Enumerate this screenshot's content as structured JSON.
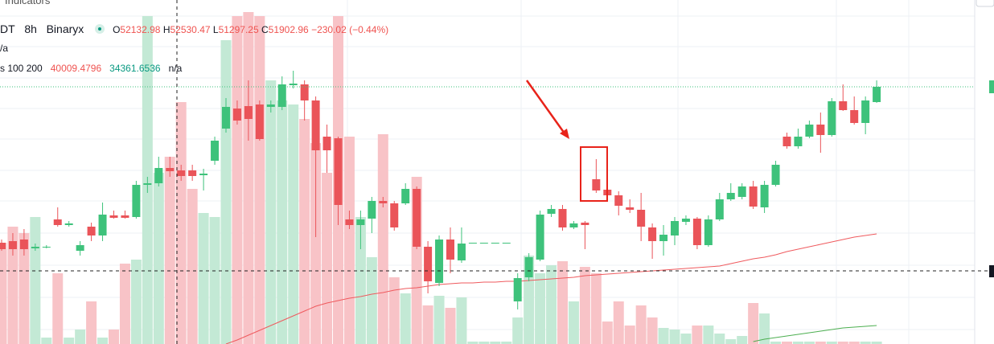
{
  "toolbar": {
    "title": "Indicators"
  },
  "legend": {
    "symbol": "DT",
    "interval": "8h",
    "exchange": "Binaryx",
    "open_label": "O",
    "open": "52132.98",
    "high_label": "H",
    "high": "52530.47",
    "low_label": "L",
    "low": "51297.25",
    "close_label": "C",
    "close": "51902.96",
    "change": "−230.02 (−0.44%)",
    "volume_row": "/a",
    "ma_label": "s 100 200",
    "ma_fast": "40009.4796",
    "ma_slow": "34361.6536",
    "ma_extra": "n/a"
  },
  "chart_data": {
    "type": "candlestick",
    "categories": [
      null,
      null,
      null,
      null,
      null,
      null,
      null,
      null,
      null,
      null,
      null,
      null,
      null,
      null,
      null,
      null,
      null,
      null,
      null,
      null,
      null,
      null,
      null,
      null,
      null,
      null,
      null,
      null,
      null,
      null,
      null,
      null,
      null,
      null,
      null,
      null,
      null,
      null,
      null,
      null,
      null,
      null,
      null,
      null,
      null,
      null,
      null,
      null,
      null,
      null,
      null,
      null,
      null,
      null,
      null,
      null,
      null,
      null,
      null,
      null,
      null,
      null,
      null,
      null,
      null,
      null,
      null,
      null,
      null,
      null,
      null,
      null,
      null,
      null,
      null,
      null,
      null,
      null,
      null
    ],
    "open": [
      44900,
      45000,
      45100,
      44550,
      44650,
      46350,
      46000,
      44400,
      45900,
      45350,
      46600,
      46600,
      46500,
      48500,
      48600,
      49550,
      49400,
      49400,
      49100,
      50000,
      52000,
      53250,
      53400,
      53500,
      53350,
      53350,
      54700,
      54750,
      53750,
      51500,
      51400,
      46350,
      46000,
      46400,
      47500,
      47350,
      47350,
      48250,
      44650,
      42400,
      45100,
      43800,
      44900,
      44900,
      44900,
      44900,
      41250,
      42750,
      43850,
      46700,
      47000,
      45850,
      46150,
      48850,
      48200,
      47850,
      47100,
      46950,
      45850,
      45000,
      45350,
      46200,
      46400,
      44750,
      46350,
      47600,
      47750,
      48400,
      47100,
      48500,
      51500,
      50900,
      51500,
      52250,
      51600,
      53700,
      53150,
      52350,
      53650
    ],
    "high": [
      45100,
      45500,
      45750,
      44850,
      44750,
      47100,
      46250,
      45000,
      46150,
      47400,
      46900,
      46900,
      48750,
      49000,
      50250,
      50250,
      49750,
      49750,
      49500,
      51500,
      53900,
      53750,
      55000,
      53750,
      53750,
      55250,
      55600,
      55000,
      54000,
      52250,
      51500,
      46900,
      46900,
      47750,
      47750,
      47500,
      48600,
      48400,
      45000,
      45350,
      45850,
      45850,
      44900,
      44900,
      44900,
      44900,
      43000,
      44250,
      46900,
      47250,
      47250,
      46250,
      46250,
      50100,
      49100,
      48100,
      47600,
      48000,
      46100,
      46000,
      46500,
      46600,
      46500,
      46600,
      48000,
      48600,
      48600,
      48750,
      48750,
      50000,
      51750,
      52000,
      52500,
      53000,
      53900,
      54750,
      54000,
      54000,
      55000
    ],
    "low": [
      44400,
      44100,
      44100,
      44400,
      44550,
      45900,
      45900,
      44100,
      45000,
      45000,
      46400,
      46400,
      46400,
      48000,
      48400,
      49000,
      48750,
      48750,
      48150,
      49750,
      51750,
      52250,
      51250,
      51250,
      53000,
      53150,
      54500,
      52500,
      45250,
      49250,
      46000,
      45750,
      44500,
      45500,
      47100,
      45650,
      47250,
      44500,
      41750,
      42200,
      43000,
      43650,
      44900,
      44900,
      44900,
      44900,
      40750,
      42500,
      43750,
      46500,
      45650,
      45750,
      44500,
      48000,
      47750,
      46600,
      46750,
      45000,
      43900,
      44100,
      44750,
      46000,
      44500,
      44650,
      46250,
      47500,
      47600,
      47000,
      46750,
      48400,
      50750,
      50750,
      51400,
      50500,
      51500,
      53100,
      52250,
      51650,
      53600
    ],
    "close": [
      44500,
      44500,
      44500,
      44650,
      44650,
      46000,
      46100,
      44750,
      45350,
      46650,
      46450,
      46450,
      48500,
      48600,
      49550,
      49350,
      49050,
      49050,
      49200,
      51250,
      53350,
      52500,
      52600,
      51350,
      53500,
      54750,
      54800,
      53750,
      50650,
      50650,
      47250,
      46000,
      46350,
      47500,
      47350,
      45850,
      48250,
      44650,
      42500,
      45100,
      43850,
      44850,
      44900,
      44900,
      44900,
      44900,
      42700,
      44000,
      46650,
      47000,
      45850,
      46100,
      46000,
      48150,
      47850,
      47200,
      46950,
      45900,
      45000,
      45400,
      46250,
      46400,
      44750,
      46350,
      47600,
      48000,
      48400,
      47150,
      48500,
      49750,
      50900,
      51500,
      52250,
      51600,
      53700,
      53150,
      52350,
      53750,
      54600
    ],
    "volume": [
      126,
      146,
      138,
      158,
      8,
      88,
      8,
      18,
      53,
      8,
      18,
      100,
      105,
      408,
      213,
      233,
      301,
      193,
      163,
      158,
      378,
      408,
      413,
      408,
      328,
      303,
      298,
      280,
      250,
      213,
      408,
      258,
      158,
      108,
      261,
      83,
      63,
      208,
      48,
      60,
      45,
      58,
      3,
      3,
      3,
      3,
      33,
      110,
      88,
      98,
      103,
      53,
      96,
      88,
      28,
      53,
      23,
      48,
      33,
      20,
      18,
      13,
      23,
      23,
      13,
      6,
      10,
      51,
      38,
      3,
      3,
      3,
      3,
      3,
      3,
      3,
      3,
      3,
      3
    ],
    "ma_fast": [
      null,
      null,
      null,
      null,
      null,
      null,
      null,
      null,
      null,
      null,
      null,
      null,
      null,
      null,
      null,
      null,
      null,
      null,
      null,
      null,
      38600,
      38850,
      39150,
      39450,
      39750,
      40050,
      40350,
      40650,
      40950,
      41150,
      41300,
      41450,
      41550,
      41700,
      41800,
      41950,
      42050,
      42100,
      42200,
      42300,
      42350,
      42400,
      42400,
      42450,
      42450,
      42500,
      42500,
      42550,
      42600,
      42650,
      42700,
      42750,
      42850,
      42900,
      42950,
      43000,
      43050,
      43100,
      43150,
      43200,
      43250,
      43300,
      43350,
      43400,
      43450,
      43600,
      43750,
      43900,
      44000,
      44150,
      44350,
      44500,
      44650,
      44800,
      44950,
      45100,
      45250,
      45350,
      45450
    ],
    "ma_slow": [
      null,
      null,
      null,
      null,
      null,
      null,
      null,
      null,
      null,
      null,
      null,
      null,
      null,
      null,
      null,
      null,
      null,
      null,
      null,
      null,
      null,
      null,
      null,
      null,
      null,
      null,
      null,
      null,
      null,
      null,
      null,
      null,
      null,
      null,
      null,
      null,
      null,
      null,
      null,
      null,
      null,
      null,
      null,
      null,
      null,
      null,
      null,
      null,
      null,
      null,
      null,
      null,
      null,
      null,
      null,
      null,
      null,
      null,
      null,
      null,
      null,
      null,
      null,
      null,
      null,
      null,
      null,
      38750,
      38900,
      39000,
      39100,
      39200,
      39300,
      39400,
      39500,
      39600,
      39650,
      39700,
      39750
    ],
    "ylim": [
      38600,
      60000
    ],
    "vlim": [
      0,
      428
    ],
    "up_color": "#3ec27b",
    "down_color": "#ea5459",
    "up_volume_color": "#c3e9d5",
    "down_volume_color": "#f8c3c7",
    "ma_fast_color": "#ef5a5e",
    "ma_slow_color": "#4caf50"
  }
}
